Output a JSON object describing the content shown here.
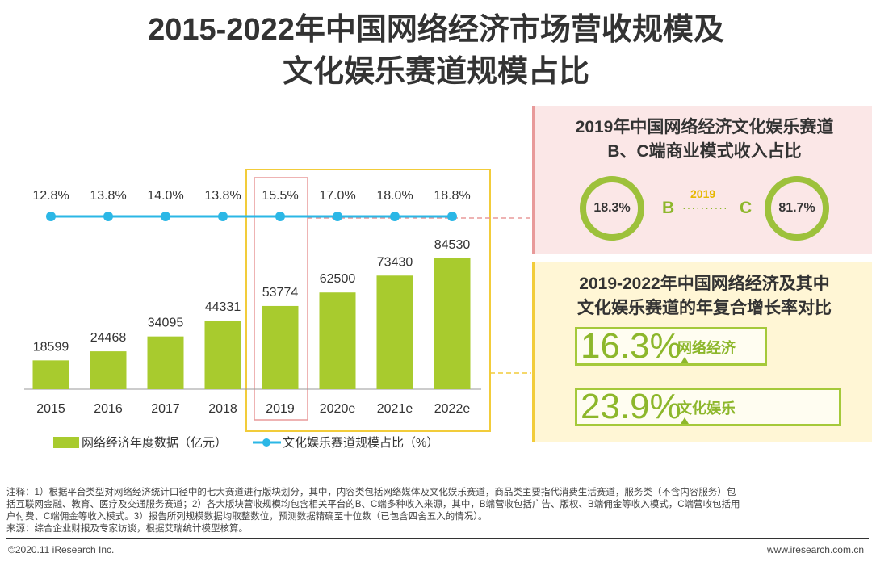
{
  "title_line1": "2015-2022年中国网络经济市场营收规模及",
  "title_line2": "文化娱乐赛道规模占比",
  "chart_data": {
    "type": "bar",
    "categories": [
      "2015",
      "2016",
      "2017",
      "2018",
      "2019",
      "2020e",
      "2021e",
      "2022e"
    ],
    "series": [
      {
        "name": "网络经济年度数据（亿元）",
        "type": "bar",
        "values": [
          18599,
          24468,
          34095,
          44331,
          53774,
          62500,
          73430,
          84530
        ]
      },
      {
        "name": "文化娱乐赛道规模占比（%）",
        "type": "line",
        "values": [
          12.8,
          13.8,
          14.0,
          13.8,
          15.5,
          17.0,
          18.0,
          18.8
        ],
        "labels": [
          "12.8%",
          "13.8%",
          "14.0%",
          "13.8%",
          "15.5%",
          "17.0%",
          "18.0%",
          "18.8%"
        ]
      }
    ],
    "legend_position": "bottom-left",
    "grid": false,
    "bar_color": "#a8cb2e",
    "line_color": "#2bb7e6"
  },
  "panel_b": {
    "title_line1": "2019年中国网络经济文化娱乐赛道",
    "title_line2": "B、C端商业模式收入占比",
    "b_value": "18.3%",
    "b_label": "B",
    "year": "2019",
    "c_label": "C",
    "c_value": "81.7%"
  },
  "panel_cagr": {
    "title_line1": "2019-2022年中国网络经济及其中",
    "title_line2": "文化娱乐赛道的年复合增长率对比",
    "items": [
      {
        "value": "16.3%",
        "label": "网络经济"
      },
      {
        "value": "23.9%",
        "label": "文化娱乐"
      }
    ]
  },
  "notes": {
    "line1": "注释：1）根据平台类型对网络经济统计口径中的七大赛道进行版块划分，其中，内容类包括网络媒体及文化娱乐赛道，商品类主要指代消费生活赛道，服务类（不含内容服务）包",
    "line2": "括互联网金融、教育、医疗及交通服务赛道；2）各大版块营收规模均包含相关平台的B、C端多种收入来源，其中，B端营收包括广告、版权、B端佣金等收入模式，C端营收包括用",
    "line3": "户付费、C端佣金等收入模式。3）报告所列规模数据均取整数位，预测数据精确至十位数（已包含四舍五入的情况）。",
    "source": "来源：综合企业财报及专家访谈，根据艾瑞统计模型核算。"
  },
  "footer": {
    "copyright": "©2020.11 iResearch Inc.",
    "website": "www.iresearch.com.cn"
  },
  "colors": {
    "accent_green": "#a8cb2e",
    "accent_blue": "#2bb7e6",
    "panel_pink": "#fbe7e7",
    "panel_yellow": "#fff6d5",
    "highlight_yellow": "#f2cc3a",
    "highlight_red": "#e89a9a"
  }
}
